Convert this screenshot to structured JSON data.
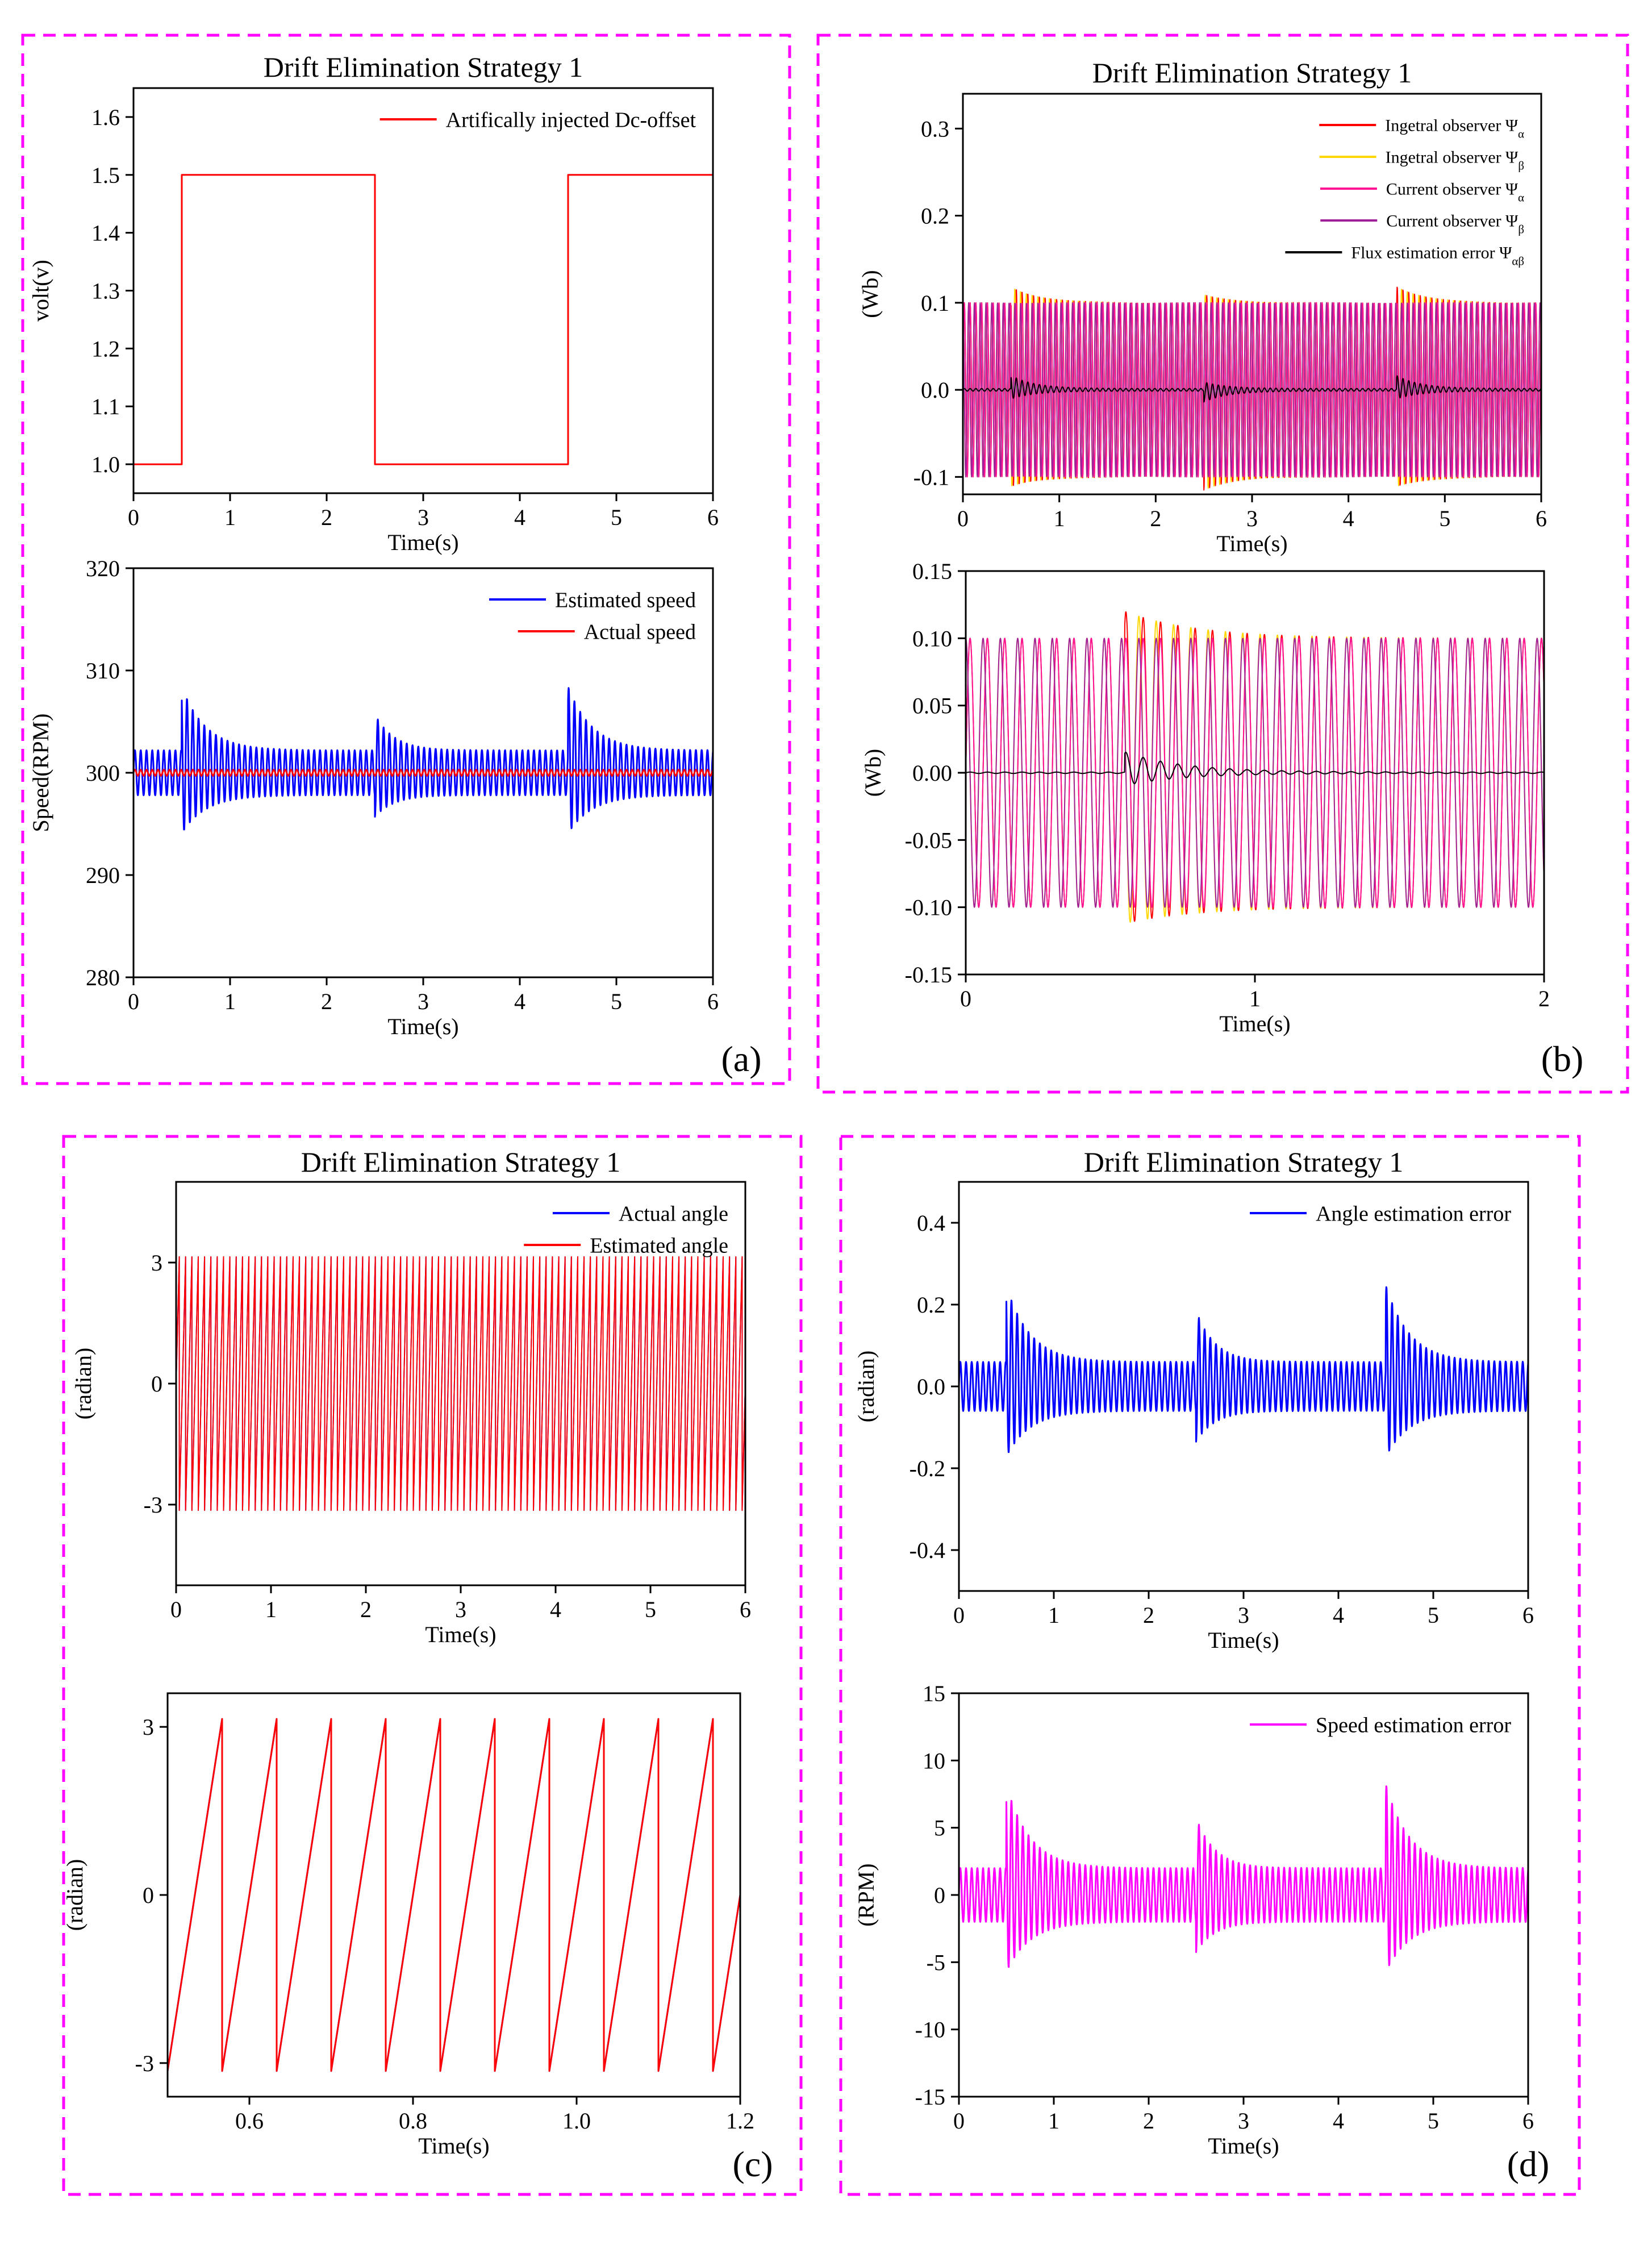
{
  "figure": {
    "panel_labels": [
      "(a)",
      "(b)",
      "(c)",
      "(d)"
    ]
  },
  "chart_data": [
    {
      "id": "a_top",
      "type": "line",
      "title": "Drift Elimination Strategy 1",
      "xlabel": "Time(s)",
      "ylabel": "volt(v)",
      "xlim": [
        0,
        6
      ],
      "ylim": [
        0.95,
        1.65
      ],
      "xticks": [
        0,
        1,
        2,
        3,
        4,
        5,
        6
      ],
      "yticks": [
        1.0,
        1.1,
        1.2,
        1.3,
        1.4,
        1.5,
        1.6
      ],
      "ytick_decimals": 1,
      "legend_position": "top-right",
      "series": [
        {
          "name": "Artifically injected Dc-offset",
          "color": "#ff0000",
          "kind": "step",
          "x": [
            0,
            0.5,
            0.5,
            2.5,
            2.5,
            4.5,
            4.5,
            6.0
          ],
          "y": [
            1.0,
            1.0,
            1.5,
            1.5,
            1.0,
            1.0,
            1.5,
            1.5
          ]
        }
      ]
    },
    {
      "id": "a_bottom",
      "type": "line",
      "xlabel": "Time(s)",
      "ylabel": "Speed(RPM)",
      "xlim": [
        0,
        6
      ],
      "ylim": [
        280,
        320
      ],
      "xticks": [
        0,
        1,
        2,
        3,
        4,
        5,
        6
      ],
      "yticks": [
        280,
        290,
        300,
        310,
        320
      ],
      "ytick_decimals": 0,
      "legend_position": "top-right",
      "series": [
        {
          "name": "Estimated speed",
          "color": "#0000ff",
          "kind": "osc",
          "base": 0,
          "center": 300,
          "amp": 2.2,
          "freq": 16.7,
          "cycle": "sine",
          "events": [
            [
              0.5,
              5.0,
              0.25
            ],
            [
              2.5,
              2.8,
              0.2
            ],
            [
              4.5,
              5.0,
              0.25
            ]
          ]
        },
        {
          "name": "Actual speed",
          "color": "#ff0000",
          "kind": "osc",
          "base": 0,
          "center": 300,
          "amp": 0.3,
          "freq": 16.7,
          "cycle": "sine",
          "events": []
        }
      ]
    },
    {
      "id": "b_top",
      "type": "line",
      "title": "Drift Elimination Strategy 1",
      "xlabel": "Time(s)",
      "ylabel": "(Wb)",
      "xlim": [
        0,
        6
      ],
      "ylim": [
        -0.12,
        0.34
      ],
      "xticks": [
        0,
        1,
        2,
        3,
        4,
        5,
        6
      ],
      "yticks": [
        -0.1,
        0.0,
        0.1,
        0.2,
        0.3
      ],
      "ytick_decimals": 1,
      "legend_position": "top-right",
      "series": [
        {
          "name": "Ingetral observer Ψ",
          "subscript": "α",
          "color": "#ff0000",
          "kind": "osc",
          "base": 0,
          "center": 0,
          "amp": 0.1,
          "freq": 16.7,
          "phase": 0,
          "cycle": "sine",
          "events": [
            [
              0.5,
              0.015,
              0.3
            ],
            [
              2.5,
              -0.012,
              0.3
            ],
            [
              4.5,
              0.015,
              0.3
            ]
          ]
        },
        {
          "name": "Ingetral observer Ψ",
          "subscript": "β",
          "color": "#ffd700",
          "kind": "osc",
          "base": 0,
          "center": 0,
          "amp": 0.1,
          "freq": 16.7,
          "phase": 1.5708,
          "cycle": "sine",
          "events": [
            [
              0.5,
              0.015,
              0.3
            ],
            [
              2.5,
              -0.012,
              0.3
            ],
            [
              4.5,
              0.015,
              0.3
            ]
          ]
        },
        {
          "name": "Current observer Ψ",
          "subscript": "α",
          "color": "#ff1493",
          "kind": "osc",
          "base": 0,
          "center": 0,
          "amp": 0.1,
          "freq": 16.7,
          "phase": 0,
          "cycle": "sine",
          "events": []
        },
        {
          "name": "Current observer Ψ",
          "subscript": "β",
          "color": "#a0209a",
          "kind": "osc",
          "base": 0,
          "center": 0,
          "amp": 0.1,
          "freq": 16.7,
          "phase": 1.5708,
          "cycle": "sine",
          "events": []
        },
        {
          "name": "Flux estimation error Ψ",
          "subscript": "αβ",
          "color": "#000000",
          "kind": "osc",
          "base": 0,
          "center": 0,
          "amp": 0.0015,
          "freq": 16.7,
          "phase": 0,
          "cycle": "sine",
          "events": [
            [
              0.5,
              0.012,
              0.25
            ],
            [
              2.5,
              -0.01,
              0.25
            ],
            [
              4.5,
              0.012,
              0.25
            ]
          ]
        }
      ]
    },
    {
      "id": "b_bottom",
      "type": "line",
      "xlabel": "Time(s)",
      "ylabel": "(Wb)",
      "xlim": [
        0,
        2
      ],
      "ylim": [
        -0.15,
        0.15
      ],
      "xticks": [
        0,
        1,
        2
      ],
      "yticks": [
        -0.15,
        -0.1,
        -0.05,
        0.0,
        0.05,
        0.1,
        0.15
      ],
      "ytick_decimals": 2,
      "series": [
        {
          "name": "Ingetral observer Ψα",
          "color": "#ff0000",
          "kind": "osc",
          "base": 0,
          "center": 0,
          "amp": 0.1,
          "freq": 16.7,
          "phase": 0,
          "cycle": "sine",
          "events": [
            [
              0.55,
              0.016,
              0.25
            ]
          ]
        },
        {
          "name": "Ingetral observer Ψβ",
          "color": "#ffd700",
          "kind": "osc",
          "base": 0,
          "center": 0,
          "amp": 0.1,
          "freq": 16.7,
          "phase": 1.5708,
          "cycle": "sine",
          "events": [
            [
              0.55,
              0.016,
              0.25
            ]
          ]
        },
        {
          "name": "Current observer Ψα",
          "color": "#ff1493",
          "kind": "osc",
          "base": 0,
          "center": 0,
          "amp": 0.1,
          "freq": 16.7,
          "phase": 0,
          "cycle": "sine",
          "events": []
        },
        {
          "name": "Current observer Ψβ",
          "color": "#a0209a",
          "kind": "osc",
          "base": 0,
          "center": 0,
          "amp": 0.1,
          "freq": 16.7,
          "phase": 1.5708,
          "cycle": "sine",
          "events": []
        },
        {
          "name": "Flux estimation error Ψαβ",
          "color": "#000000",
          "kind": "osc",
          "base": 0,
          "center": 0,
          "amp": 0.0005,
          "freq": 16.7,
          "phase": 0,
          "cycle": "sine",
          "events": [
            [
              0.55,
              0.012,
              0.2
            ]
          ]
        }
      ]
    },
    {
      "id": "c_top",
      "type": "line",
      "title": "Drift Elimination Strategy 1",
      "xlabel": "Time(s)",
      "ylabel": "(radian)",
      "xlim": [
        0,
        6
      ],
      "ylim": [
        -5,
        5
      ],
      "xticks": [
        0,
        1,
        2,
        3,
        4,
        5,
        6
      ],
      "yticks": [
        -3,
        0,
        3
      ],
      "ytick_decimals": 0,
      "legend_position": "top-right",
      "series": [
        {
          "name": "Actual angle",
          "color": "#0000ff",
          "kind": "saw",
          "amp": 3.14159,
          "freq": 15,
          "phase": 0.5
        },
        {
          "name": "Estimated angle",
          "color": "#ff0000",
          "kind": "saw",
          "amp": 3.14159,
          "freq": 15,
          "phase": 0.5
        }
      ]
    },
    {
      "id": "c_bottom",
      "type": "line",
      "xlabel": "Time(s)",
      "ylabel": "(radian)",
      "xlim": [
        0.5,
        1.2
      ],
      "ylim": [
        -3.6,
        3.6
      ],
      "xticks": [
        0.6,
        0.8,
        1.0,
        1.2
      ],
      "yticks": [
        -3,
        0,
        3
      ],
      "ytick_decimals": 0,
      "xtick_decimals": 1,
      "series": [
        {
          "name": "Actual angle",
          "color": "#0000ff",
          "kind": "saw",
          "amp": 3.14159,
          "freq": 15,
          "phase": 0.5
        },
        {
          "name": "Estimated angle",
          "color": "#ff0000",
          "kind": "saw",
          "amp": 3.14159,
          "freq": 15,
          "phase": 0.5
        }
      ]
    },
    {
      "id": "d_top",
      "type": "line",
      "title": "Drift Elimination Strategy 1",
      "xlabel": "Time(s)",
      "ylabel": "(radian)",
      "xlim": [
        0,
        6
      ],
      "ylim": [
        -0.5,
        0.5
      ],
      "xticks": [
        0,
        1,
        2,
        3,
        4,
        5,
        6
      ],
      "yticks": [
        -0.4,
        -0.2,
        0.0,
        0.2,
        0.4
      ],
      "ytick_decimals": 1,
      "legend_position": "top-right",
      "series": [
        {
          "name": "Angle estimation error",
          "color": "#0000ff",
          "kind": "osc",
          "base": 0,
          "center": 0,
          "amp": 0.06,
          "freq": 16.7,
          "phase": 0,
          "cycle": "sine",
          "events": [
            [
              0.5,
              0.15,
              0.25
            ],
            [
              2.5,
              0.1,
              0.2
            ],
            [
              4.5,
              0.15,
              0.25
            ]
          ]
        }
      ]
    },
    {
      "id": "d_bottom",
      "type": "line",
      "xlabel": "Time(s)",
      "ylabel": "(RPM)",
      "xlim": [
        0,
        6
      ],
      "ylim": [
        -15,
        15
      ],
      "xticks": [
        0,
        1,
        2,
        3,
        4,
        5,
        6
      ],
      "yticks": [
        -15,
        -10,
        -5,
        0,
        5,
        10,
        15
      ],
      "ytick_decimals": 0,
      "legend_position": "top-right",
      "series": [
        {
          "name": "Speed estimation error",
          "color": "#ff00ff",
          "kind": "osc",
          "base": 0,
          "center": 0,
          "amp": 2.0,
          "freq": 16.7,
          "phase": 0,
          "cycle": "sine",
          "events": [
            [
              0.5,
              5.0,
              0.25
            ],
            [
              2.5,
              3.0,
              0.2
            ],
            [
              4.5,
              5.0,
              0.25
            ]
          ]
        }
      ]
    }
  ]
}
